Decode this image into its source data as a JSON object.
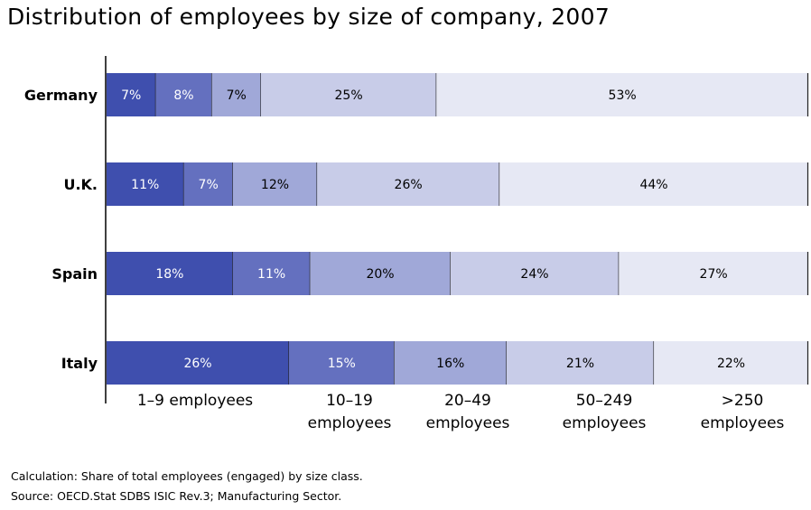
{
  "title": "Distribution of employees by size of company, 2007",
  "notes": {
    "calculation": "Calculation: Share of total employees (engaged) by size class.",
    "source": "Source: OECD.Stat SDBS ISIC Rev.3; Manufacturing Sector."
  },
  "chart_data": {
    "type": "bar",
    "orientation": "horizontal",
    "stacked": true,
    "title": "Distribution of employees by size of company, 2007",
    "categories": [
      "Germany",
      "U.K.",
      "Spain",
      "Italy"
    ],
    "size_classes": [
      [
        "1–9 employees"
      ],
      [
        "10–19",
        "employees"
      ],
      [
        "20–49",
        "employees"
      ],
      [
        "50–249",
        "employees"
      ],
      [
        ">250",
        "employees"
      ]
    ],
    "series": [
      {
        "values": [
          7,
          11,
          18,
          26
        ],
        "labels": [
          "7%",
          "11%",
          "18%",
          "26%"
        ],
        "color": "#3f4fae"
      },
      {
        "values": [
          8,
          7,
          11,
          15
        ],
        "labels": [
          "8%",
          "7%",
          "11%",
          "15%"
        ],
        "color": "#6470bf"
      },
      {
        "values": [
          7,
          12,
          20,
          16
        ],
        "labels": [
          "7%",
          "12%",
          "20%",
          "16%"
        ],
        "color": "#a0a8d8"
      },
      {
        "values": [
          25,
          26,
          24,
          21
        ],
        "labels": [
          "25%",
          "26%",
          "24%",
          "21%"
        ],
        "color": "#c8cce8"
      },
      {
        "values": [
          53,
          44,
          27,
          22
        ],
        "labels": [
          "53%",
          "44%",
          "27%",
          "22%"
        ],
        "color": "#e6e8f4"
      }
    ],
    "xlim": [
      0,
      100
    ],
    "unit": "%",
    "grid": false,
    "legend": "bottom"
  }
}
